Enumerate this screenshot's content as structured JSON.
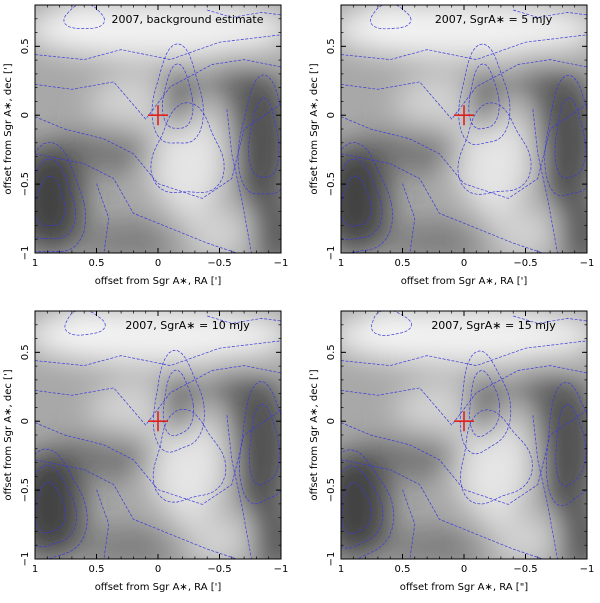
{
  "chart_data": [
    {
      "type": "heatmap",
      "title": "2007, background estimate",
      "xlabel": "offset from Sgr A∗, RA [']",
      "ylabel": "offset from Sgr A∗, dec [']",
      "xlim": [
        1,
        -1
      ],
      "ylim": [
        -1,
        0.8
      ],
      "xticks": [
        "1",
        "0.5",
        "0",
        "−0.5",
        "−1"
      ],
      "yticks": [
        "−1",
        "−0.5",
        "0",
        "0.5"
      ],
      "marker": {
        "label": "Sgr A∗ position",
        "x": 0,
        "y": 0,
        "color": "#e02020"
      },
      "contour_color": "#3a3adc",
      "colormap": "grayscale",
      "grid": false
    },
    {
      "type": "heatmap",
      "title": "2007, SgrA∗ = 5 mJy",
      "xlabel": "offset from Sgr A∗, RA [']",
      "ylabel": "offset from Sgr A∗, dec [']",
      "xlim": [
        1,
        -1
      ],
      "ylim": [
        -1,
        0.8
      ],
      "xticks": [
        "1",
        "0.5",
        "0",
        "−0.5",
        "−1"
      ],
      "yticks": [
        "−1",
        "−0.5",
        "0",
        "0.5"
      ],
      "marker": {
        "label": "Sgr A∗ position",
        "x": 0,
        "y": 0,
        "color": "#e02020"
      },
      "contour_color": "#3a3adc",
      "colormap": "grayscale",
      "grid": false
    },
    {
      "type": "heatmap",
      "title": "2007, SgrA∗ = 10 mJy",
      "xlabel": "offset from Sgr A∗, RA [']",
      "ylabel": "offset from Sgr A∗, dec [']",
      "xlim": [
        1,
        -1
      ],
      "ylim": [
        -1,
        0.8
      ],
      "xticks": [
        "1",
        "0.5",
        "0",
        "−0.5",
        "−1"
      ],
      "yticks": [
        "−1",
        "−0.5",
        "0",
        "0.5"
      ],
      "marker": {
        "label": "Sgr A∗ position",
        "x": 0,
        "y": 0,
        "color": "#e02020"
      },
      "contour_color": "#3a3adc",
      "colormap": "grayscale",
      "grid": false
    },
    {
      "type": "heatmap",
      "title": "2007, SgrA∗ = 15 mJy",
      "xlabel": "offset from Sgr A∗, RA [\"]",
      "ylabel": "offset from Sgr A∗, dec [']",
      "xlim": [
        1,
        -1
      ],
      "ylim": [
        -1,
        0.8
      ],
      "xticks": [
        "1",
        "0.5",
        "0",
        "−0.5",
        "−1"
      ],
      "yticks": [
        "−1",
        "−0.5",
        "0",
        "0.5"
      ],
      "marker": {
        "label": "Sgr A∗ position",
        "x": 0,
        "y": 0,
        "color": "#e02020"
      },
      "contour_color": "#3a3adc",
      "colormap": "grayscale",
      "grid": false
    }
  ]
}
